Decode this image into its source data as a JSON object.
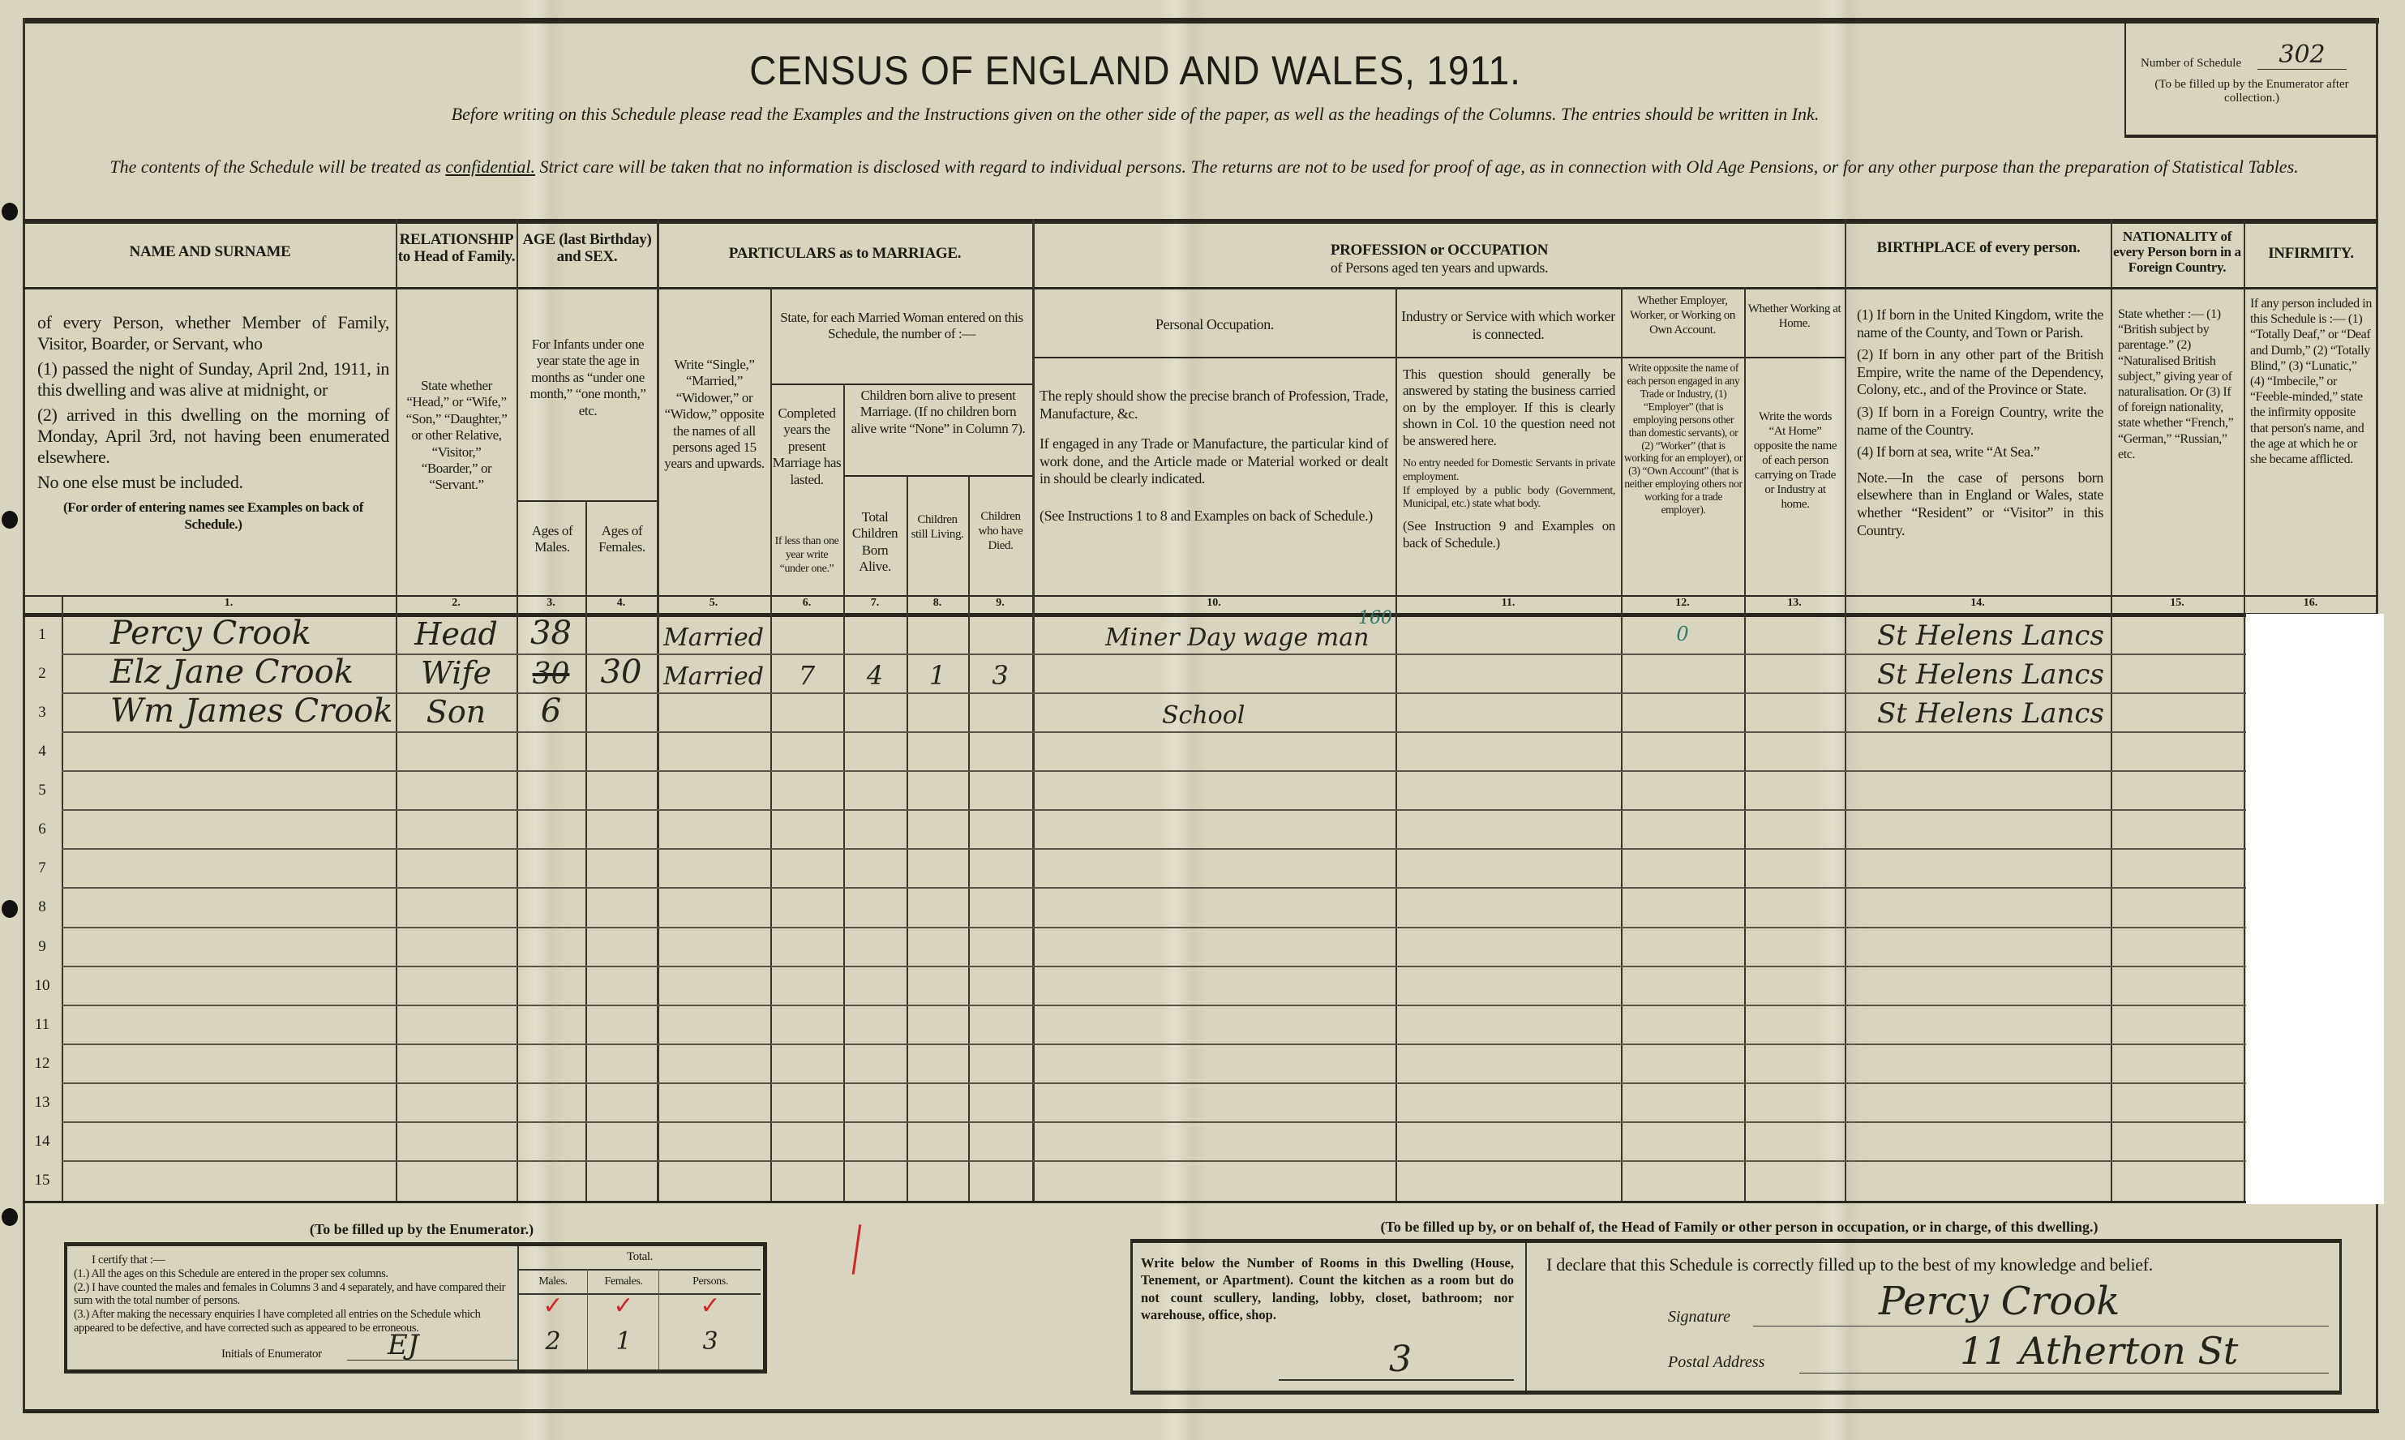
{
  "header": {
    "title": "CENSUS OF ENGLAND AND WALES, 1911.",
    "instructions": "Before writing on this Schedule please read the Examples and the Instructions given on the other side of the paper, as well as the headings of the Columns.  The entries should be written in Ink.",
    "confidential_before": "The contents of the Schedule will be treated as ",
    "confidential_word": "confidential.",
    "confidential_after": "  Strict care will be taken that no information is disclosed with regard to individual persons.  The returns are not to be used for proof of age, as in connection with Old Age Pensions, or for any other purpose than the preparation of Statistical Tables."
  },
  "schedule_number": {
    "label": "Number of Schedule",
    "value": "302",
    "note": "(To be filled up by the Enumerator after collection.)"
  },
  "columns": {
    "c1_head": "NAME AND SURNAME",
    "c1_desc_a": "of every Person, whether Member of Family, Visitor, Boarder, or Servant, who",
    "c1_desc_b": "(1) passed the night of Sunday, April 2nd, 1911, in this dwelling and was alive at midnight, or",
    "c1_desc_c": "(2) arrived in this dwelling on the morning of Monday, April 3rd, not having been enumerated elsewhere.",
    "c1_desc_d": "No one else must be included.",
    "c1_desc_e": "(For order of entering names see Examples on back of Schedule.)",
    "c2_head": "RELATIONSHIP to Head of Family.",
    "c2_desc": "State whether “Head,” or “Wife,” “Son,” “Daughter,” or other Relative, “Visitor,” “Boarder,” or “Servant.”",
    "c3_head": "AGE (last Birthday) and SEX.",
    "c3_desc": "For Infants under one year state the age in months as “under one month,” “one month,” etc.",
    "c3_sub": "Ages of Males.",
    "c4_sub": "Ages of Females.",
    "c5_group": "PARTICULARS as to MARRIAGE.",
    "c5_desc": "Write “Single,” “Married,” “Widower,” or “Widow,” opposite the names of all persons aged 15 years and upwards.",
    "c6_group": "State, for each Married Woman entered on this Schedule, the number of :—",
    "c6_desc": "Completed years the present Marriage has lasted.",
    "c6_note": "If less than one year write “under one.”",
    "c7_group": "Children born alive to present Marriage. (If no children born alive write “None” in Column 7).",
    "c7_desc": "Total Children Born Alive.",
    "c8_desc": "Children still Living.",
    "c9_desc": "Children who have Died.",
    "c10_group": "PROFESSION or OCCUPATION",
    "c10_group_sub": "of Persons aged ten years and upwards.",
    "c10_head": "Personal Occupation.",
    "c10_desc_a": "The reply should show the precise branch of Profession, Trade, Manufacture, &c.",
    "c10_desc_b": "If engaged in any Trade or Manufacture, the particular kind of work done, and the Article made or Material worked or dealt in should be clearly indicated.",
    "c10_desc_c": "(See Instructions 1 to 8 and Examples on back of Schedule.)",
    "c11_head": "Industry or Service with which worker is connected.",
    "c11_desc_a": "This question should generally be answered by stating the business carried on by the employer. If this is clearly shown in Col. 10 the question need not be answered here.",
    "c11_desc_b": "No entry needed for Domestic Servants in private employment.",
    "c11_desc_c": "If employed by a public body (Government, Municipal, etc.) state what body.",
    "c11_desc_d": "(See Instruction 9 and Examples on back of Schedule.)",
    "c12_head": "Whether Employer, Worker, or Working on Own Account.",
    "c12_desc": "Write opposite the name of each person engaged in any Trade or Industry, (1) “Employer” (that is employing persons other than domestic servants), or (2) “Worker” (that is working for an employer), or (3) “Own Account” (that is neither employing others nor working for a trade employer).",
    "c13_head": "Whether Working at Home.",
    "c13_desc": "Write the words “At Home” opposite the name of each person carrying on Trade or Industry at home.",
    "c14_head": "BIRTHPLACE of every person.",
    "c14_desc_a": "(1) If born in the United Kingdom, write the name of the County, and Town or Parish.",
    "c14_desc_b": "(2) If born in any other part of the British Empire, write the name of the Dependency, Colony, etc., and of the Province or State.",
    "c14_desc_c": "(3) If born in a Foreign Country, write the name of the Country.",
    "c14_desc_d": "(4) If born at sea, write “At Sea.”",
    "c14_note": "Note.—In the case of persons born elsewhere than in England or Wales, state whether “Resident” or “Visitor” in this Country.",
    "c15_head": "NATIONALITY of every Person born in a Foreign Country.",
    "c15_desc": "State whether :— (1) “British subject by parentage.” (2) “Naturalised British subject,” giving year of naturalisation. Or (3) If of foreign nationality, state whether “French,” “German,” “Russian,” etc.",
    "c16_head": "INFIRMITY.",
    "c16_desc": "If any person included in this Schedule is :— (1) “Totally Deaf,” or “Deaf and Dumb,” (2) “Totally Blind,” (3) “Lunatic,” (4) “Imbecile,” or “Feeble-minded,” state the infirmity opposite that person's name, and the age at which he or she became afflicted.",
    "numbers": [
      "1.",
      "2.",
      "3.",
      "4.",
      "5.",
      "6.",
      "7.",
      "8.",
      "9.",
      "10.",
      "11.",
      "12.",
      "13.",
      "14.",
      "15.",
      "16."
    ]
  },
  "rows": [
    {
      "n": "1",
      "name": "Percy Crook",
      "relation": "Head",
      "age_m": "38",
      "age_f": "",
      "condition": "Married",
      "years": "",
      "born": "",
      "living": "",
      "died": "",
      "occupation": "Miner Day wage man",
      "occupation_note": "160",
      "industry": "",
      "employment": "0",
      "home": "",
      "birthplace": "St Helens Lancs",
      "nationality": "",
      "infirmity": ""
    },
    {
      "n": "2",
      "name": "Elz Jane Crook",
      "relation": "Wife",
      "age_m_struck": "30",
      "age_m": "",
      "age_f": "30",
      "condition": "Married",
      "years": "7",
      "born": "4",
      "living": "1",
      "died": "3",
      "occupation": "",
      "industry": "",
      "employment": "",
      "home": "",
      "birthplace": "St Helens Lancs",
      "nationality": "",
      "infirmity": ""
    },
    {
      "n": "3",
      "name": "Wm James Crook",
      "relation": "Son",
      "age_m": "6",
      "age_f": "",
      "condition": "",
      "years": "",
      "born": "",
      "living": "",
      "died": "",
      "occupation": "School",
      "industry": "",
      "employment": "",
      "home": "",
      "birthplace": "St Helens Lancs",
      "nationality": "",
      "infirmity": ""
    },
    {
      "n": "4"
    },
    {
      "n": "5"
    },
    {
      "n": "6"
    },
    {
      "n": "7"
    },
    {
      "n": "8"
    },
    {
      "n": "9"
    },
    {
      "n": "10"
    },
    {
      "n": "11"
    },
    {
      "n": "12"
    },
    {
      "n": "13"
    },
    {
      "n": "14"
    },
    {
      "n": "15"
    }
  ],
  "enumerator": {
    "heading": "(To be filled up by the Enumerator.)",
    "certify": "I certify that :—",
    "item1": "(1.) All the ages on this Schedule are entered in the proper sex columns.",
    "item2": "(2.) I have counted the males and females in Columns 3 and 4 separately, and have compared their sum with the total number of persons.",
    "item3": "(3.) After making the necessary enquiries I have completed all entries on the Schedule which appeared to be defective, and have corrected such as appeared to be erroneous.",
    "initials_label": "Initials of Enumerator",
    "initials": "EJ",
    "total_label": "Total.",
    "males_label": "Males.",
    "females_label": "Females.",
    "persons_label": "Persons.",
    "males": "2",
    "females": "1",
    "persons": "3",
    "check_color": "#d0262a"
  },
  "householder": {
    "heading": "(To be filled up by, or on behalf of, the Head of Family or other person in occupation, or in charge, of this dwelling.)",
    "rooms_text": "Write below the Number of Rooms in this Dwelling (House, Tenement, or Apartment). Count the kitchen as a room but do not count scullery, landing, lobby, closet, bathroom; nor warehouse, office, shop.",
    "rooms": "3",
    "declaration": "I declare that this Schedule is correctly filled up to the best of my knowledge and belief.",
    "signature_label": "Signature",
    "signature": "Percy Crook",
    "address_label": "Postal Address",
    "address": "11 Atherton St"
  },
  "colors": {
    "paper": "#d9d4bd",
    "ink": "#1e1b16",
    "green_annotation": "#2e7a6a",
    "red_mark": "#d0262a"
  }
}
